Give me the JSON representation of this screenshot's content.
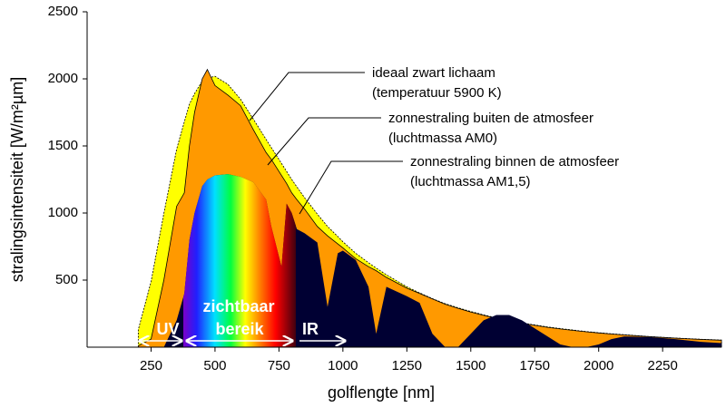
{
  "chart_data": {
    "type": "area",
    "xlabel": "golflengte [nm]",
    "ylabel": "stralingsintensiteit [W/m²µm]",
    "xlim": [
      0,
      2480
    ],
    "ylim": [
      0,
      2500
    ],
    "xticks": [
      250,
      500,
      750,
      1000,
      1250,
      1500,
      1750,
      2000,
      2250
    ],
    "yticks": [
      500,
      1000,
      1500,
      2000,
      2500
    ],
    "x": [
      200,
      250,
      300,
      350,
      380,
      400,
      420,
      450,
      470,
      500,
      550,
      600,
      650,
      700,
      720,
      760,
      780,
      800,
      820,
      850,
      900,
      940,
      980,
      1000,
      1050,
      1100,
      1130,
      1170,
      1250,
      1300,
      1350,
      1400,
      1450,
      1500,
      1550,
      1600,
      1650,
      1700,
      1800,
      1850,
      1900,
      1950,
      2000,
      2050,
      2100,
      2200,
      2300,
      2400,
      2480
    ],
    "series": [
      {
        "name": "ideaal zwart lichaam",
        "detail": "(temperatuur 5900 K)",
        "color": "#ffff00",
        "outline": "dashed",
        "values": [
          130,
          489,
          997,
          1476,
          1680,
          1812,
          1890,
          1984,
          2005,
          2019,
          1960,
          1848,
          1700,
          1548,
          1488,
          1370,
          1310,
          1250,
          1195,
          1115,
          992,
          900,
          825,
          786,
          700,
          630,
          590,
          540,
          450,
          405,
          362,
          324,
          294,
          266,
          241,
          218,
          199,
          181,
          151,
          139,
          128,
          117,
          108,
          100,
          93,
          79,
          68,
          59,
          53
        ]
      },
      {
        "name": "zonnestraling buiten de atmosfeer",
        "detail": "(luchtmassa AM0)",
        "color": "#ff9900",
        "outline": "solid",
        "values": [
          10,
          60,
          500,
          1050,
          1150,
          1500,
          1750,
          2000,
          2070,
          1950,
          1880,
          1800,
          1620,
          1450,
          1400,
          1280,
          1220,
          1150,
          1100,
          1030,
          900,
          830,
          770,
          740,
          660,
          600,
          570,
          520,
          440,
          400,
          360,
          320,
          290,
          262,
          237,
          215,
          195,
          178,
          148,
          136,
          125,
          115,
          106,
          98,
          91,
          78,
          67,
          58,
          52
        ]
      },
      {
        "name": "zonnestraling binnen de atmosfeer",
        "detail": "(luchtmassa AM1,5)",
        "color": "#000033",
        "outline": "none",
        "values": [
          0,
          0,
          0,
          200,
          400,
          800,
          1000,
          1200,
          1250,
          1280,
          1290,
          1270,
          1230,
          1100,
          900,
          600,
          1070,
          1000,
          880,
          850,
          780,
          300,
          700,
          720,
          650,
          450,
          100,
          450,
          380,
          330,
          100,
          0,
          0,
          100,
          200,
          240,
          240,
          200,
          80,
          20,
          0,
          0,
          20,
          60,
          80,
          75,
          60,
          40,
          30
        ]
      }
    ],
    "band_labels": {
      "uv": "UV",
      "visible": [
        "zichtbaar",
        "bereik"
      ],
      "ir": "IR"
    }
  }
}
